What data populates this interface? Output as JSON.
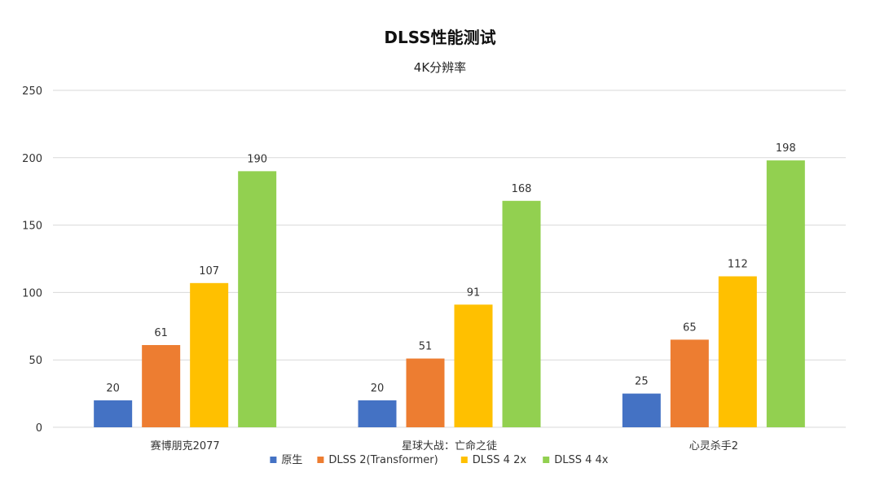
{
  "chart_data": {
    "type": "bar",
    "title": "DLSS性能测试",
    "subtitle": "4K分辨率",
    "categories": [
      "赛博朋克2077",
      "星球大战：亡命之徒",
      "心灵杀手2"
    ],
    "series": [
      {
        "name": "原生",
        "color": "#4472C4",
        "values": [
          20,
          20,
          25
        ]
      },
      {
        "name": "DLSS 2(Transformer)",
        "color": "#ED7D31",
        "values": [
          61,
          51,
          65
        ]
      },
      {
        "name": "DLSS 4 2x",
        "color": "#FFC000",
        "values": [
          107,
          91,
          112
        ]
      },
      {
        "name": "DLSS 4 4x",
        "color": "#92D050",
        "values": [
          190,
          168,
          198
        ]
      }
    ],
    "ylim": [
      0,
      250
    ],
    "yticks": [
      0,
      50,
      100,
      150,
      200,
      250
    ],
    "grid": true,
    "legend_position": "bottom",
    "data_labels": true
  }
}
